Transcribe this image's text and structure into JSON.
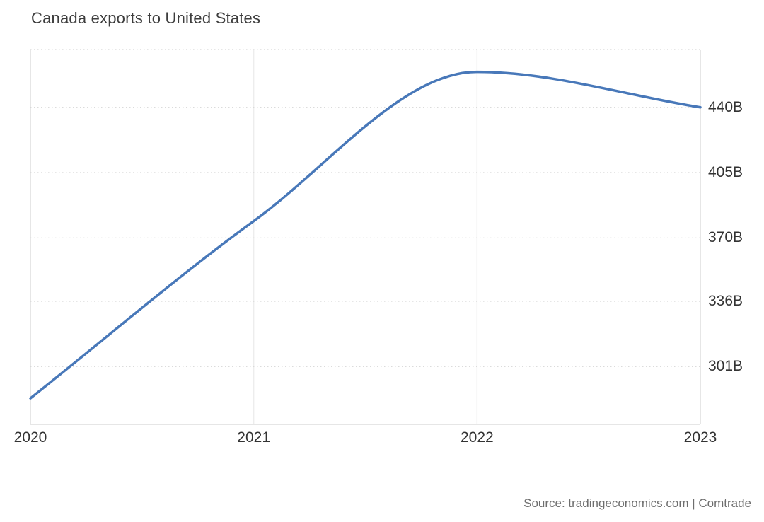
{
  "header": {
    "title": "Canada exports to United States"
  },
  "footer": {
    "source_text": "Source: tradingeconomics.com | Comtrade"
  },
  "chart_data": {
    "type": "line",
    "title": "Canada exports to United States",
    "x": [
      2020,
      2021,
      2022,
      2023
    ],
    "values": [
      284,
      379,
      459,
      440
    ],
    "value_suffix": "B",
    "xlim": [
      2020,
      2023
    ],
    "ylim": [
      270,
      471
    ],
    "xticks": [
      {
        "value": 2020,
        "label": "2020"
      },
      {
        "value": 2021,
        "label": "2021"
      },
      {
        "value": 2022,
        "label": "2022"
      },
      {
        "value": 2023,
        "label": "2023"
      }
    ],
    "yticks": [
      {
        "value": 440,
        "label": "440B"
      },
      {
        "value": 405,
        "label": "405B"
      },
      {
        "value": 370,
        "label": "370B"
      },
      {
        "value": 336,
        "label": "336B"
      },
      {
        "value": 301,
        "label": "301B"
      }
    ],
    "line_color": "#4878b9",
    "grid": {
      "horizontal": "dotted",
      "vertical": "solid",
      "on": true
    },
    "legend": "none",
    "smoothing": "monotone-spline",
    "y_axis_side": "right",
    "xlabel": "",
    "ylabel": ""
  },
  "colors": {
    "title_text": "#3d3d3d",
    "tick_text": "#333333",
    "source_text": "#6e6e6e",
    "border_line": "#dedede",
    "inner_vertical_grid": "#ededed",
    "dotted_grid": "#d6d6d6",
    "background": "#ffffff"
  }
}
